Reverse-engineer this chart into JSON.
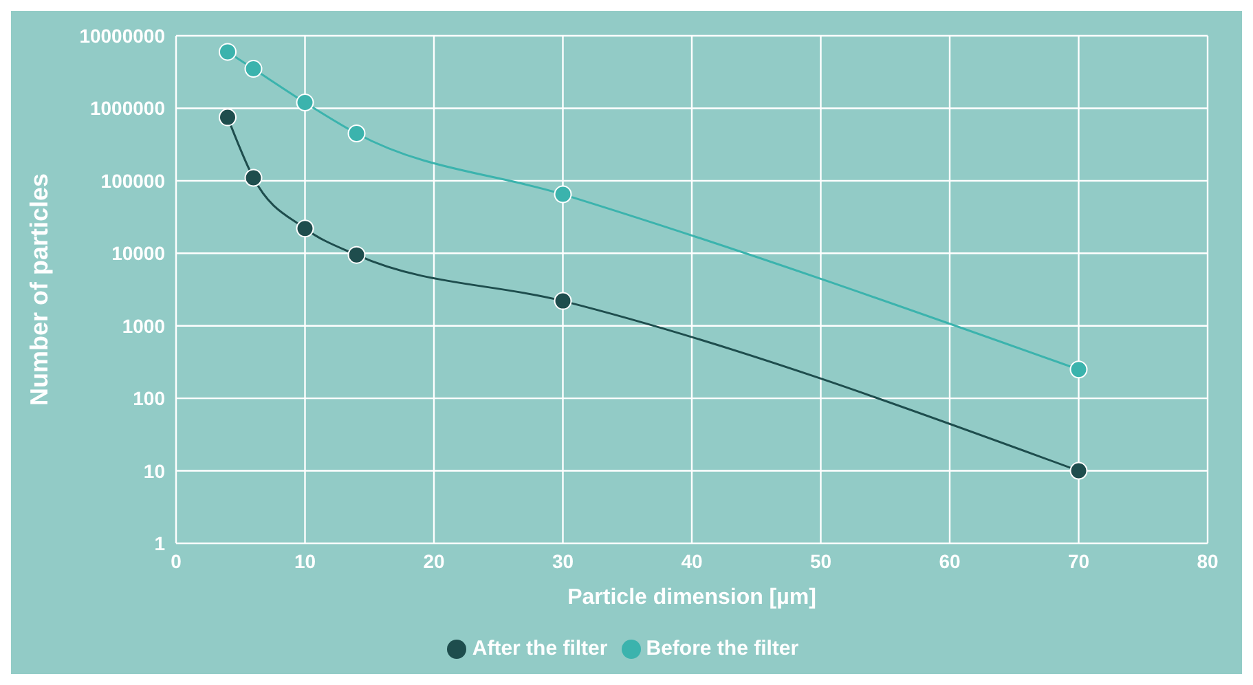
{
  "chart_data": {
    "type": "line",
    "xlabel": "Particle dimension [µm]",
    "ylabel": "Number of particles",
    "x": [
      4,
      6,
      10,
      14,
      30,
      70
    ],
    "series": [
      {
        "name": "Before the filter",
        "color": "#3bb3ad",
        "values": [
          6000000,
          3500000,
          1200000,
          450000,
          65000,
          250
        ]
      },
      {
        "name": "After the filter",
        "color": "#1e4d4d",
        "values": [
          750000,
          110000,
          22000,
          9500,
          2200,
          10
        ]
      }
    ],
    "xlim": [
      0,
      80
    ],
    "xticks": [
      0,
      10,
      20,
      30,
      40,
      50,
      60,
      70,
      80
    ],
    "ylim": [
      1,
      10000000
    ],
    "yticks": [
      1,
      10,
      100,
      1000,
      10000,
      100000,
      1000000,
      10000000
    ],
    "log": "y",
    "grid": true,
    "legend": "bottom",
    "marker": "circle",
    "line_style": "solid"
  }
}
